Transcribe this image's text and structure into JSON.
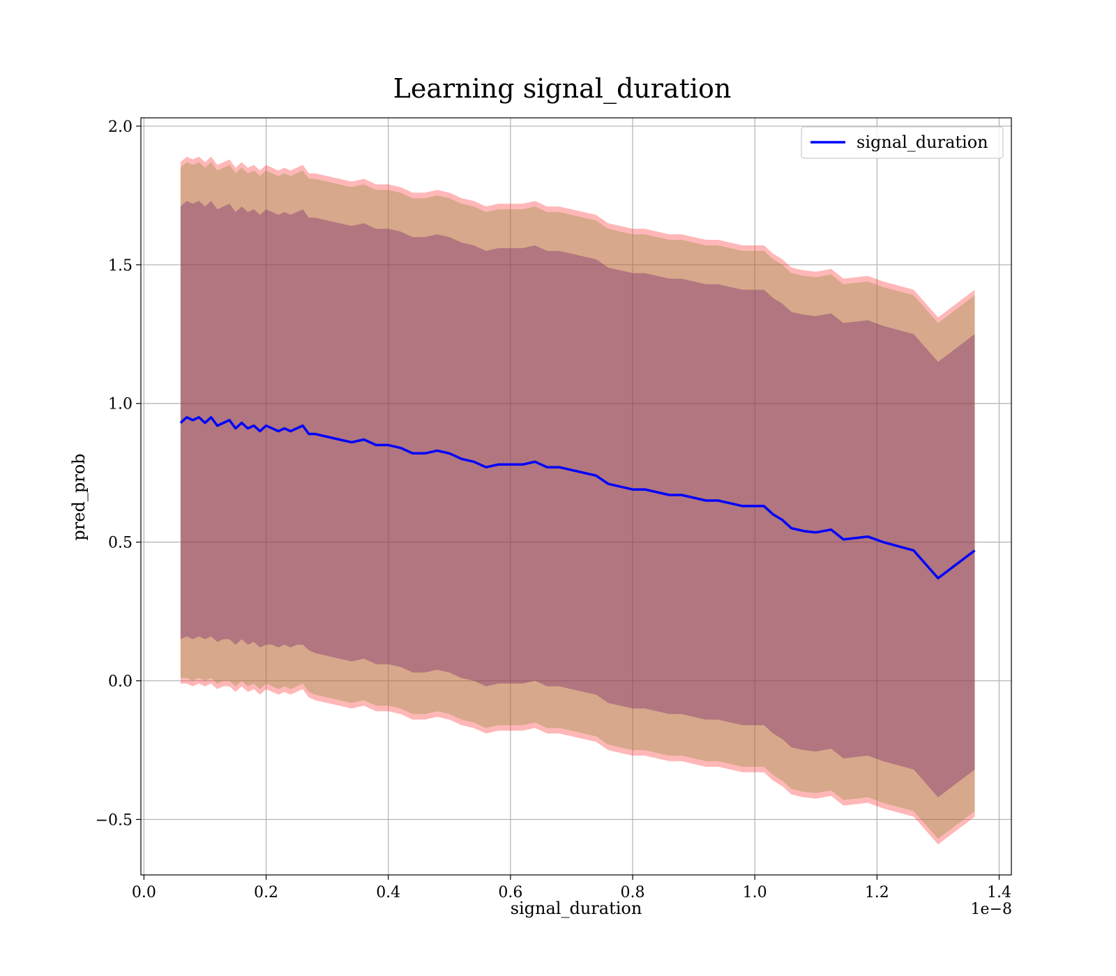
{
  "chart_data": {
    "type": "line",
    "title": "Learning signal_duration",
    "xlabel": "signal_duration",
    "ylabel": "pred_prob",
    "x_offset_label": "1e−8",
    "xlim": [
      -0.005,
      1.42
    ],
    "ylim": [
      -0.7,
      2.03
    ],
    "x_ticks": [
      0.0,
      0.2,
      0.4,
      0.6,
      0.8,
      1.0,
      1.2,
      1.4
    ],
    "x_tick_labels": [
      "0.0",
      "0.2",
      "0.4",
      "0.6",
      "0.8",
      "1.0",
      "1.2",
      "1.4"
    ],
    "y_ticks": [
      -0.5,
      0.0,
      0.5,
      1.0,
      1.5,
      2.0
    ],
    "y_tick_labels": [
      "−0.5",
      "0.0",
      "0.5",
      "1.0",
      "1.5",
      "2.0"
    ],
    "grid": true,
    "legend_position": "top-right",
    "series": [
      {
        "name": "signal_duration",
        "color": "#0000ff",
        "x": [
          0.06,
          0.07,
          0.08,
          0.09,
          0.1,
          0.11,
          0.12,
          0.13,
          0.14,
          0.15,
          0.16,
          0.17,
          0.18,
          0.19,
          0.2,
          0.21,
          0.22,
          0.23,
          0.24,
          0.25,
          0.26,
          0.27,
          0.28,
          0.3,
          0.32,
          0.34,
          0.36,
          0.38,
          0.4,
          0.42,
          0.44,
          0.46,
          0.48,
          0.5,
          0.52,
          0.54,
          0.56,
          0.58,
          0.6,
          0.62,
          0.64,
          0.66,
          0.68,
          0.7,
          0.72,
          0.74,
          0.76,
          0.78,
          0.8,
          0.82,
          0.84,
          0.86,
          0.88,
          0.9,
          0.92,
          0.94,
          0.96,
          0.98,
          1.0,
          1.015,
          1.03,
          1.045,
          1.06,
          1.08,
          1.1,
          1.125,
          1.145,
          1.185,
          1.21,
          1.26,
          1.3,
          1.36
        ],
        "values": [
          0.93,
          0.95,
          0.94,
          0.95,
          0.93,
          0.95,
          0.92,
          0.93,
          0.94,
          0.91,
          0.93,
          0.91,
          0.92,
          0.9,
          0.92,
          0.91,
          0.9,
          0.91,
          0.9,
          0.91,
          0.92,
          0.89,
          0.89,
          0.88,
          0.87,
          0.86,
          0.87,
          0.85,
          0.85,
          0.84,
          0.82,
          0.82,
          0.83,
          0.82,
          0.8,
          0.79,
          0.77,
          0.78,
          0.78,
          0.78,
          0.79,
          0.77,
          0.77,
          0.76,
          0.75,
          0.74,
          0.71,
          0.7,
          0.69,
          0.69,
          0.68,
          0.67,
          0.67,
          0.66,
          0.65,
          0.65,
          0.64,
          0.63,
          0.63,
          0.63,
          0.6,
          0.58,
          0.55,
          0.54,
          0.535,
          0.545,
          0.51,
          0.52,
          0.5,
          0.47,
          0.37,
          0.47
        ],
        "bands": [
          {
            "name": "",
            "color": "#ff3030",
            "opacity": 0.35,
            "lower": [
              -0.01,
              -0.01,
              -0.02,
              -0.01,
              -0.02,
              -0.01,
              -0.03,
              -0.02,
              -0.02,
              -0.04,
              -0.02,
              -0.04,
              -0.03,
              -0.05,
              -0.03,
              -0.04,
              -0.05,
              -0.04,
              -0.05,
              -0.04,
              -0.03,
              -0.06,
              -0.07,
              -0.08,
              -0.09,
              -0.1,
              -0.09,
              -0.11,
              -0.11,
              -0.12,
              -0.14,
              -0.14,
              -0.13,
              -0.14,
              -0.16,
              -0.17,
              -0.19,
              -0.18,
              -0.18,
              -0.18,
              -0.17,
              -0.19,
              -0.19,
              -0.2,
              -0.21,
              -0.22,
              -0.25,
              -0.26,
              -0.27,
              -0.27,
              -0.28,
              -0.29,
              -0.29,
              -0.3,
              -0.31,
              -0.31,
              -0.32,
              -0.33,
              -0.33,
              -0.33,
              -0.36,
              -0.38,
              -0.41,
              -0.42,
              -0.425,
              -0.415,
              -0.45,
              -0.44,
              -0.46,
              -0.49,
              -0.59,
              -0.49
            ],
            "upper": [
              1.87,
              1.89,
              1.88,
              1.89,
              1.87,
              1.89,
              1.86,
              1.87,
              1.88,
              1.85,
              1.87,
              1.85,
              1.86,
              1.84,
              1.86,
              1.85,
              1.84,
              1.85,
              1.84,
              1.85,
              1.86,
              1.83,
              1.83,
              1.82,
              1.81,
              1.8,
              1.81,
              1.79,
              1.79,
              1.78,
              1.76,
              1.76,
              1.77,
              1.76,
              1.74,
              1.73,
              1.71,
              1.72,
              1.72,
              1.72,
              1.73,
              1.71,
              1.71,
              1.7,
              1.69,
              1.68,
              1.65,
              1.64,
              1.63,
              1.63,
              1.62,
              1.61,
              1.61,
              1.6,
              1.59,
              1.59,
              1.58,
              1.57,
              1.57,
              1.57,
              1.54,
              1.52,
              1.49,
              1.48,
              1.475,
              1.485,
              1.45,
              1.46,
              1.44,
              1.41,
              1.31,
              1.41
            ]
          },
          {
            "name": "",
            "color": "#8b8b3a",
            "opacity": 0.35,
            "lower": [
              0.01,
              0.01,
              0.0,
              0.01,
              0.0,
              0.01,
              -0.01,
              0.0,
              0.0,
              -0.02,
              0.0,
              -0.02,
              -0.01,
              -0.03,
              -0.01,
              -0.02,
              -0.03,
              -0.02,
              -0.03,
              -0.02,
              -0.01,
              -0.04,
              -0.05,
              -0.06,
              -0.07,
              -0.08,
              -0.07,
              -0.09,
              -0.09,
              -0.1,
              -0.12,
              -0.12,
              -0.11,
              -0.12,
              -0.14,
              -0.15,
              -0.17,
              -0.16,
              -0.16,
              -0.16,
              -0.15,
              -0.17,
              -0.17,
              -0.18,
              -0.19,
              -0.2,
              -0.23,
              -0.24,
              -0.25,
              -0.25,
              -0.26,
              -0.27,
              -0.27,
              -0.28,
              -0.29,
              -0.29,
              -0.3,
              -0.31,
              -0.31,
              -0.31,
              -0.34,
              -0.36,
              -0.39,
              -0.4,
              -0.405,
              -0.395,
              -0.43,
              -0.42,
              -0.44,
              -0.47,
              -0.57,
              -0.47
            ],
            "upper": [
              1.85,
              1.87,
              1.86,
              1.87,
              1.85,
              1.87,
              1.84,
              1.85,
              1.86,
              1.83,
              1.85,
              1.83,
              1.84,
              1.82,
              1.84,
              1.83,
              1.82,
              1.83,
              1.82,
              1.83,
              1.84,
              1.81,
              1.81,
              1.8,
              1.79,
              1.78,
              1.79,
              1.77,
              1.77,
              1.76,
              1.74,
              1.74,
              1.75,
              1.74,
              1.72,
              1.71,
              1.69,
              1.7,
              1.7,
              1.7,
              1.71,
              1.69,
              1.69,
              1.68,
              1.67,
              1.66,
              1.63,
              1.62,
              1.61,
              1.61,
              1.6,
              1.59,
              1.59,
              1.58,
              1.57,
              1.57,
              1.56,
              1.55,
              1.55,
              1.55,
              1.52,
              1.5,
              1.47,
              1.46,
              1.455,
              1.465,
              1.43,
              1.44,
              1.42,
              1.39,
              1.29,
              1.39
            ]
          },
          {
            "name": "",
            "color": "#6a1b6a",
            "opacity": 0.35,
            "lower": [
              0.15,
              0.16,
              0.15,
              0.16,
              0.15,
              0.16,
              0.14,
              0.15,
              0.15,
              0.13,
              0.15,
              0.13,
              0.14,
              0.12,
              0.13,
              0.13,
              0.12,
              0.13,
              0.12,
              0.13,
              0.13,
              0.11,
              0.1,
              0.09,
              0.08,
              0.07,
              0.08,
              0.06,
              0.06,
              0.05,
              0.03,
              0.03,
              0.04,
              0.03,
              0.01,
              0.0,
              -0.02,
              -0.01,
              -0.01,
              -0.01,
              0.0,
              -0.02,
              -0.02,
              -0.03,
              -0.04,
              -0.05,
              -0.08,
              -0.09,
              -0.1,
              -0.1,
              -0.11,
              -0.12,
              -0.12,
              -0.13,
              -0.14,
              -0.14,
              -0.15,
              -0.16,
              -0.16,
              -0.16,
              -0.19,
              -0.21,
              -0.24,
              -0.25,
              -0.255,
              -0.245,
              -0.28,
              -0.27,
              -0.29,
              -0.32,
              -0.42,
              -0.32
            ],
            "upper": [
              1.71,
              1.73,
              1.72,
              1.73,
              1.71,
              1.73,
              1.7,
              1.71,
              1.72,
              1.69,
              1.71,
              1.69,
              1.7,
              1.68,
              1.7,
              1.69,
              1.68,
              1.69,
              1.68,
              1.69,
              1.7,
              1.67,
              1.67,
              1.66,
              1.65,
              1.64,
              1.65,
              1.63,
              1.63,
              1.62,
              1.6,
              1.6,
              1.61,
              1.6,
              1.58,
              1.57,
              1.55,
              1.56,
              1.56,
              1.56,
              1.57,
              1.55,
              1.55,
              1.54,
              1.53,
              1.52,
              1.49,
              1.48,
              1.47,
              1.47,
              1.46,
              1.45,
              1.45,
              1.44,
              1.43,
              1.43,
              1.42,
              1.41,
              1.41,
              1.41,
              1.38,
              1.36,
              1.33,
              1.32,
              1.315,
              1.325,
              1.29,
              1.3,
              1.28,
              1.25,
              1.15,
              1.25
            ]
          }
        ]
      }
    ]
  }
}
